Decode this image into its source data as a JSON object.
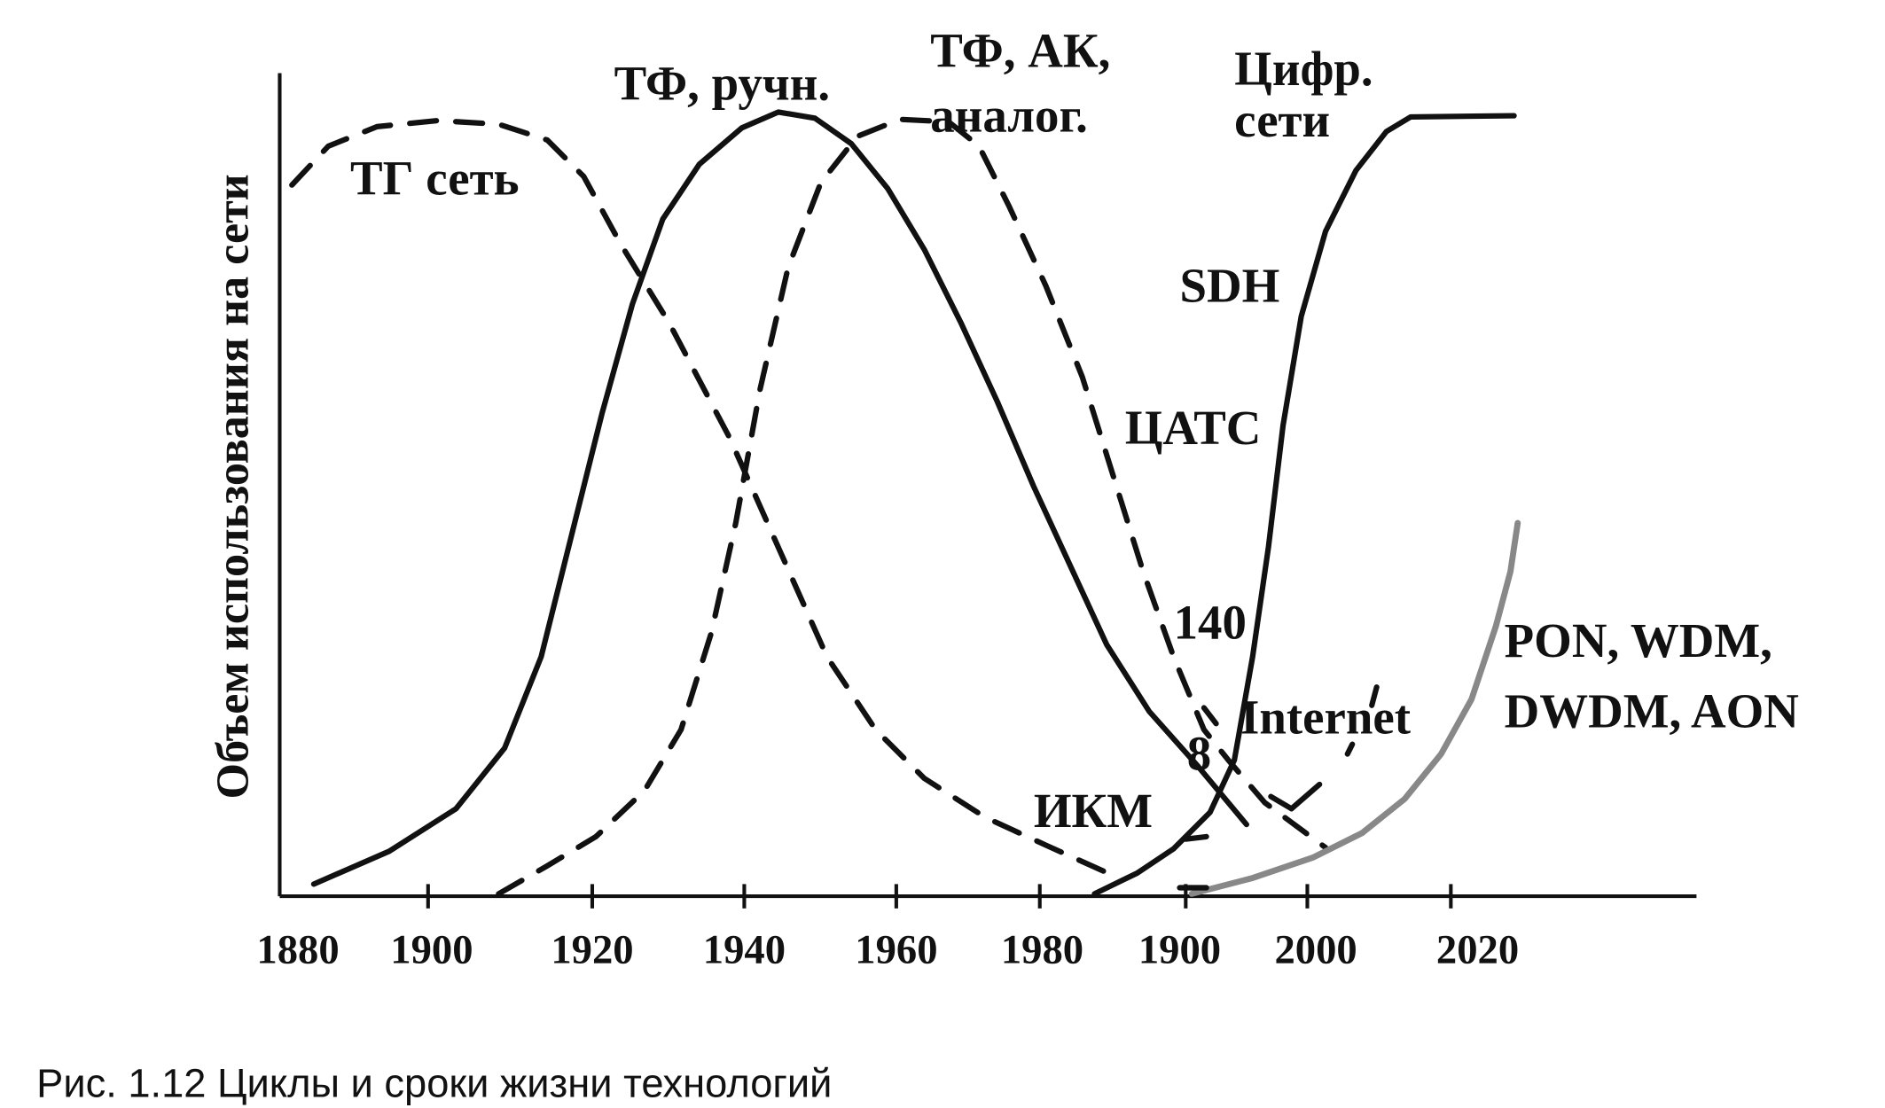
{
  "figure": {
    "y_axis_label": "Объем использования на сети",
    "x_axis_labels": [
      "1880",
      "1900",
      "1920",
      "1940",
      "1960",
      "1980",
      "1900",
      "2000",
      "2020"
    ],
    "curve_labels": [
      "ТГ сеть",
      "ТФ, ручн.",
      "ТФ, АК,",
      "аналог.",
      "Цифр.",
      "сети",
      "SDH",
      "ЦАТС",
      "140",
      "Internet",
      "8",
      "ИКМ",
      "PON, WDM,",
      "DWDM, AON"
    ],
    "caption": "Рис. 1.12 Циклы и сроки жизни технологий"
  }
}
